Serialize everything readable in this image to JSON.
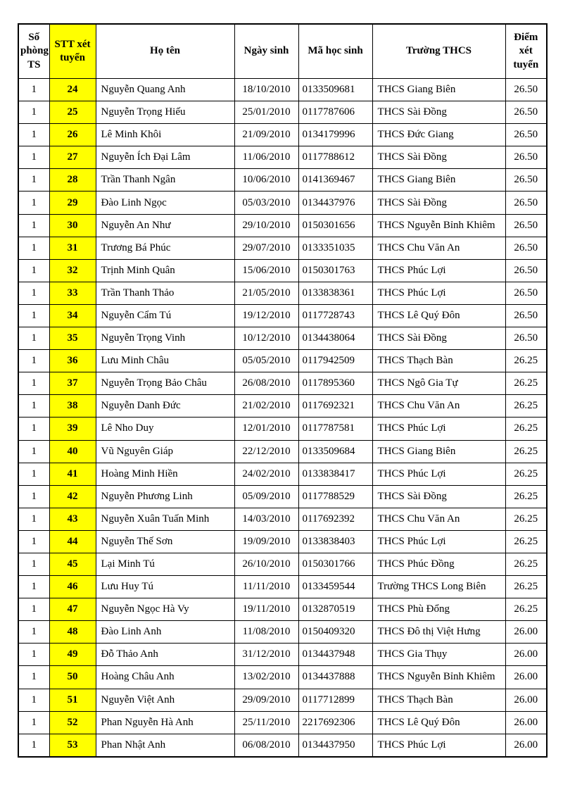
{
  "page": {
    "background": "#ffffff"
  },
  "table": {
    "highlight_color": "#FFFF00",
    "border_color": "#000000",
    "columns": [
      "Số phòng TS",
      "STT xét tuyển",
      "Họ tên",
      "Ngày sinh",
      "Mã học sinh",
      "Trường THCS",
      "Điểm xét tuyển"
    ],
    "rows": [
      [
        "1",
        "24",
        "Nguyễn Quang Anh",
        "18/10/2010",
        "0133509681",
        "THCS Giang Biên",
        "26.50"
      ],
      [
        "1",
        "25",
        "Nguyễn Trọng Hiếu",
        "25/01/2010",
        "0117787606",
        "THCS Sài Đồng",
        "26.50"
      ],
      [
        "1",
        "26",
        "Lê Minh Khôi",
        "21/09/2010",
        "0134179996",
        "THCS Đức Giang",
        "26.50"
      ],
      [
        "1",
        "27",
        "Nguyễn Ích Đại Lâm",
        "11/06/2010",
        "0117788612",
        "THCS Sài Đồng",
        "26.50"
      ],
      [
        "1",
        "28",
        "Trần Thanh Ngân",
        "10/06/2010",
        "0141369467",
        "THCS Giang Biên",
        "26.50"
      ],
      [
        "1",
        "29",
        "Đào Linh Ngọc",
        "05/03/2010",
        "0134437976",
        "THCS Sài Đồng",
        "26.50"
      ],
      [
        "1",
        "30",
        "Nguyễn An Như",
        "29/10/2010",
        "0150301656",
        "THCS Nguyễn Bỉnh Khiêm",
        "26.50"
      ],
      [
        "1",
        "31",
        "Trương Bá Phúc",
        "29/07/2010",
        "0133351035",
        "THCS Chu Văn An",
        "26.50"
      ],
      [
        "1",
        "32",
        "Trịnh Minh Quân",
        "15/06/2010",
        "0150301763",
        "THCS Phúc Lợi",
        "26.50"
      ],
      [
        "1",
        "33",
        "Trần Thanh Thảo",
        "21/05/2010",
        "0133838361",
        "THCS Phúc Lợi",
        "26.50"
      ],
      [
        "1",
        "34",
        "Nguyễn Cẩm Tú",
        "19/12/2010",
        "0117728743",
        "THCS Lê Quý Đôn",
        "26.50"
      ],
      [
        "1",
        "35",
        "Nguyễn Trọng Vinh",
        "10/12/2010",
        "0134438064",
        "THCS Sài Đồng",
        "26.50"
      ],
      [
        "1",
        "36",
        "Lưu Minh Châu",
        "05/05/2010",
        "0117942509",
        "THCS Thạch Bàn",
        "26.25"
      ],
      [
        "1",
        "37",
        "Nguyễn Trọng Bảo Châu",
        "26/08/2010",
        "0117895360",
        "THCS Ngô Gia Tự",
        "26.25"
      ],
      [
        "1",
        "38",
        "Nguyễn Danh Đức",
        "21/02/2010",
        "0117692321",
        "THCS Chu Văn An",
        "26.25"
      ],
      [
        "1",
        "39",
        "Lê Nho Duy",
        "12/01/2010",
        "0117787581",
        "THCS Phúc Lợi",
        "26.25"
      ],
      [
        "1",
        "40",
        "Vũ Nguyên Giáp",
        "22/12/2010",
        "0133509684",
        "THCS Giang Biên",
        "26.25"
      ],
      [
        "1",
        "41",
        "Hoàng Minh Hiền",
        "24/02/2010",
        "0133838417",
        "THCS Phúc Lợi",
        "26.25"
      ],
      [
        "1",
        "42",
        "Nguyễn Phương Linh",
        "05/09/2010",
        "0117788529",
        "THCS Sài Đồng",
        "26.25"
      ],
      [
        "1",
        "43",
        "Nguyễn Xuân Tuấn Minh",
        "14/03/2010",
        "0117692392",
        "THCS Chu Văn An",
        "26.25"
      ],
      [
        "1",
        "44",
        "Nguyễn Thế Sơn",
        "19/09/2010",
        "0133838403",
        "THCS Phúc Lợi",
        "26.25"
      ],
      [
        "1",
        "45",
        "Lại Minh Tú",
        "26/10/2010",
        "0150301766",
        "THCS Phúc Đồng",
        "26.25"
      ],
      [
        "1",
        "46",
        "Lưu Huy Tú",
        "11/11/2010",
        "0133459544",
        "Trường THCS Long Biên",
        "26.25"
      ],
      [
        "1",
        "47",
        "Nguyễn Ngọc Hà Vy",
        "19/11/2010",
        "0132870519",
        "THCS Phù Đổng",
        "26.25"
      ],
      [
        "1",
        "48",
        "Đào Linh Anh",
        "11/08/2010",
        "0150409320",
        "THCS Đô thị Việt Hưng",
        "26.00"
      ],
      [
        "1",
        "49",
        "Đỗ Thảo Anh",
        "31/12/2010",
        "0134437948",
        "THCS Gia Thụy",
        "26.00"
      ],
      [
        "1",
        "50",
        "Hoàng Châu Anh",
        "13/02/2010",
        "0134437888",
        "THCS Nguyễn Bỉnh Khiêm",
        "26.00"
      ],
      [
        "1",
        "51",
        "Nguyễn Việt Anh",
        "29/09/2010",
        "0117712899",
        "THCS Thạch Bàn",
        "26.00"
      ],
      [
        "1",
        "52",
        "Phan Nguyễn Hà Anh",
        "25/11/2010",
        "2217692306",
        "THCS Lê Quý Đôn",
        "26.00"
      ],
      [
        "1",
        "53",
        "Phan Nhật Anh",
        "06/08/2010",
        "0134437950",
        "THCS Phúc Lợi",
        "26.00"
      ]
    ]
  }
}
